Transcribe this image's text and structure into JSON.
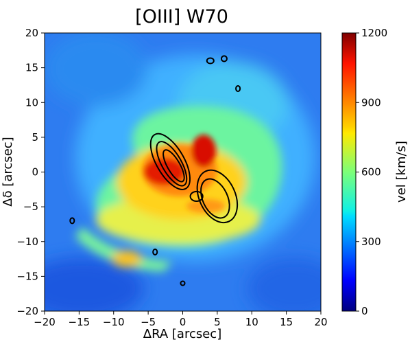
{
  "chart_data": {
    "type": "heatmap",
    "title": "[OIII] W70",
    "xlabel": "ΔRA [arcsec]",
    "ylabel": "Δδ [arcsec]",
    "xlim": [
      -20,
      20
    ],
    "ylim": [
      -20,
      20
    ],
    "x_ticks": [
      -20,
      -15,
      -10,
      -5,
      0,
      5,
      10,
      15,
      20
    ],
    "y_ticks": [
      -20,
      -15,
      -10,
      -5,
      0,
      5,
      10,
      15,
      20
    ],
    "colorbar": {
      "label": "vel [km/s]",
      "range": [
        0,
        1200
      ],
      "ticks": [
        0,
        300,
        600,
        900,
        1200
      ],
      "colormap": "jet"
    },
    "colors": {
      "background_field": "#2e7cf0",
      "contour": "#000000"
    },
    "features": [
      {
        "kind": "peak",
        "x": -3,
        "y": 0,
        "value": 1150
      },
      {
        "kind": "peak",
        "x": 2.5,
        "y": 2,
        "value": 1100
      },
      {
        "kind": "ring",
        "x": 0,
        "y": -1,
        "value": 700
      },
      {
        "kind": "knot",
        "x": -8,
        "y": -12,
        "value": 800
      }
    ],
    "contours": [
      {
        "x": -1.8,
        "y": 1.5,
        "rx": 2.0,
        "ry": 4.5,
        "rot": -30
      },
      {
        "x": -1.6,
        "y": 1.2,
        "rx": 1.4,
        "ry": 3.6,
        "rot": -30
      },
      {
        "x": -1.3,
        "y": 0.9,
        "rx": 0.9,
        "ry": 2.6,
        "rot": -30
      },
      {
        "x": 5.0,
        "y": -3.5,
        "rx": 2.6,
        "ry": 4.0,
        "rot": -25
      },
      {
        "x": 4.7,
        "y": -3.8,
        "rx": 1.8,
        "ry": 3.0,
        "rot": -25
      },
      {
        "x": 2.0,
        "y": -3.5,
        "rx": 0.9,
        "ry": 0.7,
        "rot": 0
      },
      {
        "x": 4.0,
        "y": 16.0,
        "rx": 0.5,
        "ry": 0.4,
        "rot": 0
      },
      {
        "x": 6.0,
        "y": 16.3,
        "rx": 0.4,
        "ry": 0.4,
        "rot": 0
      },
      {
        "x": -16.0,
        "y": -7.0,
        "rx": 0.3,
        "ry": 0.4,
        "rot": 0
      },
      {
        "x": -4.0,
        "y": -11.5,
        "rx": 0.3,
        "ry": 0.4,
        "rot": 0
      },
      {
        "x": 0.0,
        "y": -16.0,
        "rx": 0.3,
        "ry": 0.3,
        "rot": 0
      },
      {
        "x": 8.0,
        "y": 12.0,
        "rx": 0.3,
        "ry": 0.4,
        "rot": 0
      }
    ]
  }
}
